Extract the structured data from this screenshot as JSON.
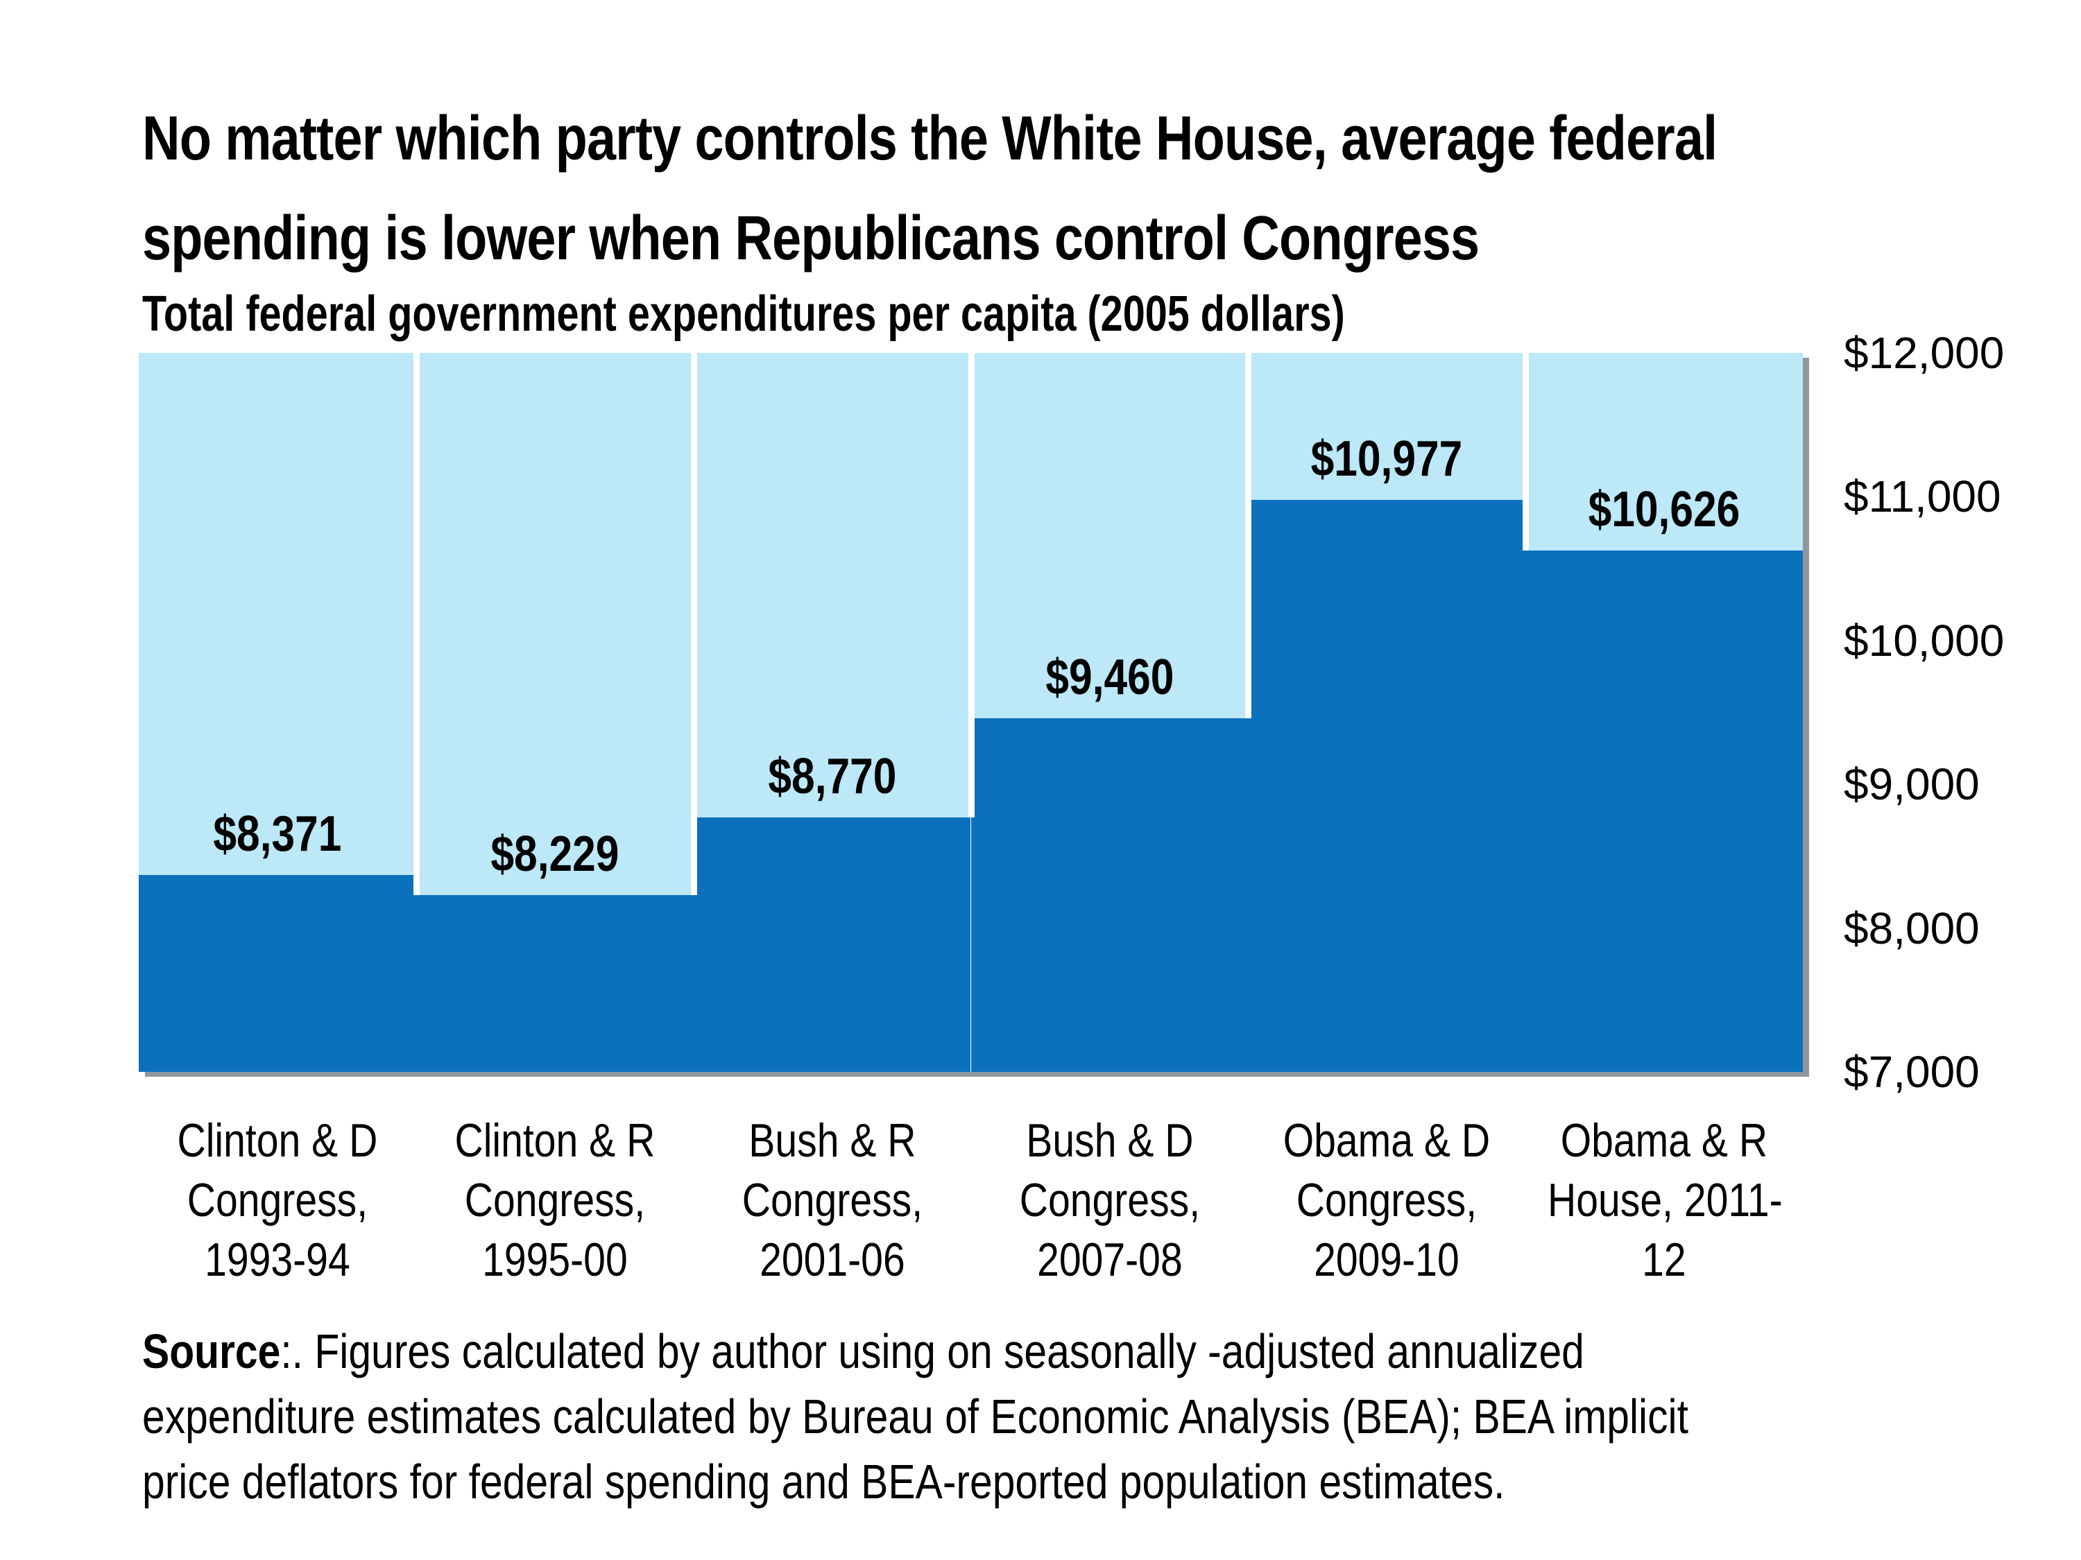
{
  "header": {
    "title_lines": [
      "No matter which party controls the White House, average federal",
      "spending is lower when Republicans control Congress"
    ],
    "subtitle": "Total federal government expenditures per capita (2005 dollars)"
  },
  "chart_data": {
    "type": "bar",
    "title": "Total federal government expenditures per capita (2005 dollars)",
    "categories": [
      "Clinton & D Congress, 1993-94",
      "Clinton & R Congress, 1995-00",
      "Bush & R Congress, 2001-06",
      "Bush & D Congress, 2007-08",
      "Obama & D Congress, 2009-10",
      "Obama & R House, 2011-12"
    ],
    "category_lines": [
      [
        "Clinton & D",
        "Congress,",
        "1993-94"
      ],
      [
        "Clinton & R",
        "Congress,",
        "1995-00"
      ],
      [
        "Bush & R",
        "Congress,",
        "2001-06"
      ],
      [
        "Bush & D",
        "Congress,",
        "2007-08"
      ],
      [
        "Obama & D",
        "Congress,",
        "2009-10"
      ],
      [
        "Obama & R",
        "House, 2011-",
        "12"
      ]
    ],
    "values": [
      8371,
      8229,
      8770,
      9460,
      10977,
      10626
    ],
    "value_labels": [
      "$8,371",
      "$8,229",
      "$8,770",
      "$9,460",
      "$10,977",
      "$10,626"
    ],
    "xlabel": "",
    "ylabel": "",
    "ylim": [
      7000,
      12000
    ],
    "grid": false,
    "legend": "none",
    "y_ticks": [
      {
        "label": "$12,000",
        "value": 12000
      },
      {
        "label": "$11,000",
        "value": 11000
      },
      {
        "label": "$10,000",
        "value": 10000
      },
      {
        "label": "$9,000",
        "value": 9000
      },
      {
        "label": "$8,000",
        "value": 8000
      },
      {
        "label": "$7,000",
        "value": 7000
      }
    ],
    "colors": {
      "bar_dark_blue": "#0b71bd",
      "background_light_blue": "#bce8f8",
      "shadow_gray": "#8f979d",
      "text_black": "#000000",
      "page_background": "#ffffff"
    }
  },
  "source": {
    "bold_label": "Source",
    "line1_rest": ":. Figures calculated by author using on seasonally -adjusted annualized",
    "line2": "expenditure estimates calculated by Bureau of Economic Analysis (BEA); BEA implicit",
    "line3": "price deflators for federal spending and BEA-reported population estimates."
  }
}
